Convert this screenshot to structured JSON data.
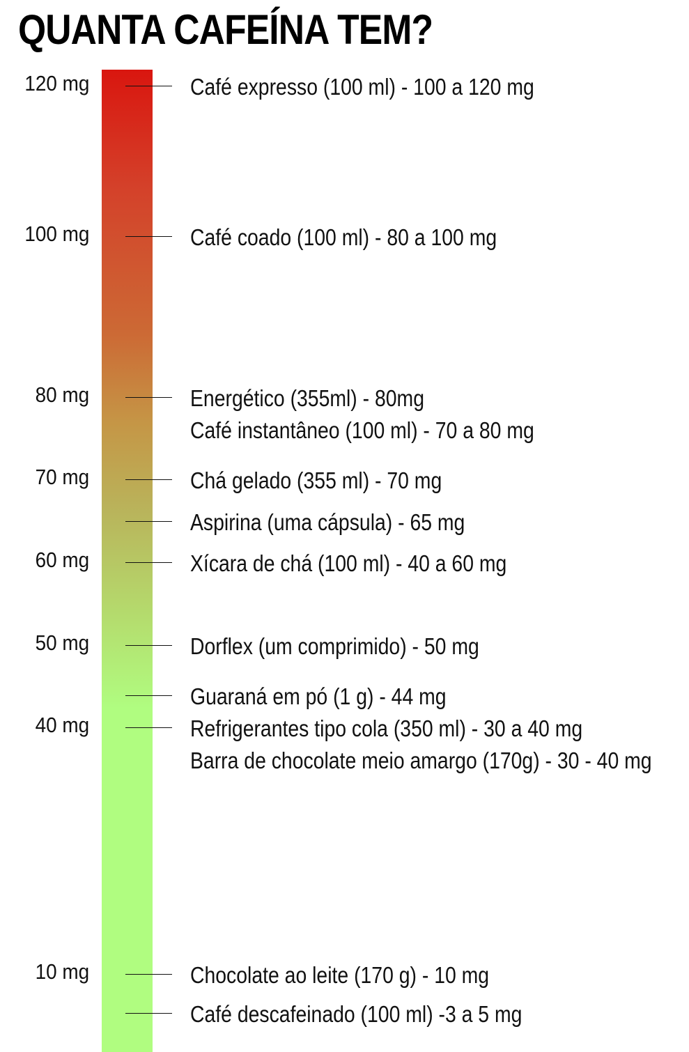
{
  "chart_data": {
    "type": "scale",
    "title": "QUANTA CAFEÍNA TEM?",
    "unit": "mg",
    "scale_labels": [
      {
        "value": 120,
        "text": "120 mg"
      },
      {
        "value": 100,
        "text": "100 mg"
      },
      {
        "value": 80,
        "text": "80 mg"
      },
      {
        "value": 70,
        "text": "70 mg"
      },
      {
        "value": 60,
        "text": "60 mg"
      },
      {
        "value": 50,
        "text": "50 mg"
      },
      {
        "value": 40,
        "text": "40 mg"
      },
      {
        "value": 10,
        "text": "10 mg"
      }
    ],
    "items": [
      {
        "value": 120,
        "text": "Café expresso (100 ml) - 100 a 120 mg"
      },
      {
        "value": 100,
        "text": "Café coado (100 ml) - 80 a 100 mg"
      },
      {
        "value": 80,
        "text": "Energético (355ml) - 80mg"
      },
      {
        "value": 80,
        "text": "Café instantâneo (100 ml) - 70 a 80 mg"
      },
      {
        "value": 70,
        "text": "Chá gelado (355 ml) - 70 mg"
      },
      {
        "value": 65,
        "text": "Aspirina (uma cápsula) - 65 mg"
      },
      {
        "value": 60,
        "text": "Xícara de chá (100 ml) - 40 a 60 mg"
      },
      {
        "value": 50,
        "text": "Dorflex (um comprimido) - 50 mg"
      },
      {
        "value": 44,
        "text": "Guaraná em pó (1 g) - 44 mg"
      },
      {
        "value": 40,
        "text": "Refrigerantes tipo cola (350 ml) - 30 a 40 mg"
      },
      {
        "value": 40,
        "text": "Barra de chocolate meio amargo (170g) - 30 - 40 mg"
      },
      {
        "value": 10,
        "text": "Chocolate ao leite (170 g) - 10 mg"
      },
      {
        "value": 5,
        "text": "Café descafeinado (100 ml) -3 a 5 mg"
      }
    ],
    "gradient_colors": {
      "high": "#d9160f",
      "middle": "#c59646",
      "low": "#b0fd80"
    }
  }
}
